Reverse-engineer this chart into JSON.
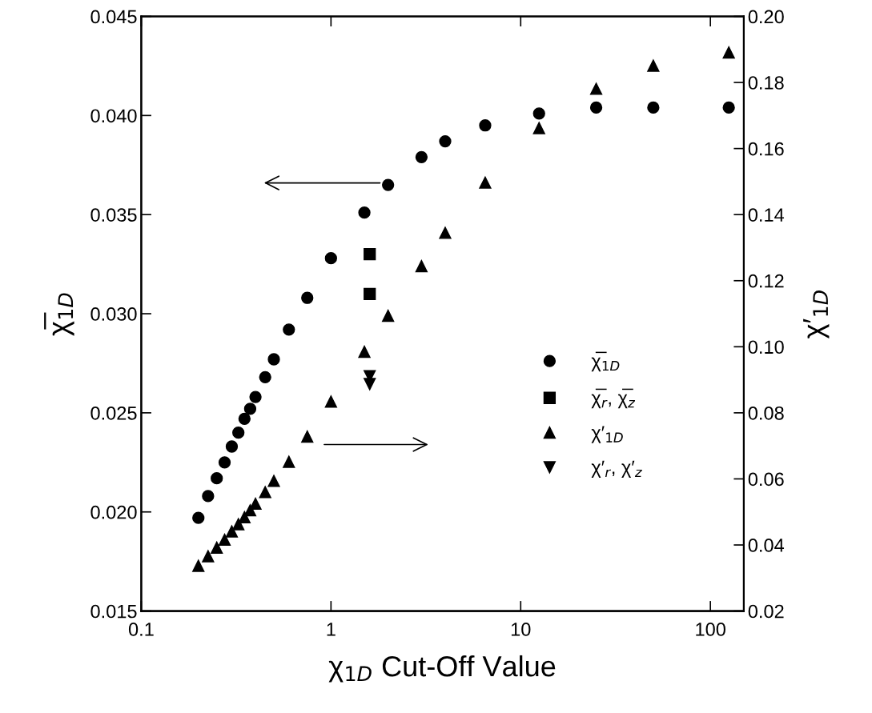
{
  "chart_data": {
    "type": "scatter",
    "xlabel": "χ$_{1D}$ Cut-Off Value",
    "ylabel": "χ̅$_{1D}$",
    "y2label": "χ′$_{1D}$",
    "log": "x",
    "xlim": [
      0.1,
      150
    ],
    "xticks": [
      0.1,
      1,
      10,
      100
    ],
    "ylim": [
      0.015,
      0.045
    ],
    "yticks": [
      0.015,
      {
        "value": 0.02,
        "label": "0.020"
      },
      0.025,
      {
        "value": 0.03,
        "label": "0.030"
      },
      0.035,
      {
        "value": 0.04,
        "label": "0.040"
      },
      0.045
    ],
    "y2lim": [
      0.02,
      0.2
    ],
    "y2ticks": [
      0.02,
      0.04,
      0.06,
      0.08,
      {
        "value": 0.1,
        "label": "0.10"
      },
      0.12,
      0.14,
      0.16,
      0.18,
      {
        "value": 0.2,
        "label": "0.20"
      }
    ],
    "grid": false,
    "legend": "right",
    "series": [
      {
        "name": "χ̅$_{1D}$",
        "color": "#000000",
        "marker": "circle",
        "x": [
          0.2,
          0.225,
          0.25,
          0.275,
          0.3,
          0.325,
          0.35,
          0.375,
          0.4,
          0.45,
          0.5,
          0.6,
          0.75,
          1,
          1.5,
          2,
          3,
          4,
          6.5,
          12.5,
          25,
          50,
          125
        ],
        "values": [
          0.0197,
          0.0208,
          0.0217,
          0.0225,
          0.0233,
          0.024,
          0.0247,
          0.0252,
          0.0258,
          0.0268,
          0.0277,
          0.0292,
          0.0308,
          0.0328,
          0.0351,
          0.0365,
          0.0379,
          0.0387,
          0.0395,
          0.0401,
          0.0404,
          0.0404,
          0.0404
        ]
      },
      {
        "name": "χ̅$_{r}$, χ̅$_{z}$",
        "color": "#000000",
        "marker": "square",
        "x": [
          1.6,
          1.6
        ],
        "values": [
          0.033,
          0.031
        ]
      },
      {
        "name": "χ′$_{1D}$",
        "color": "#000000",
        "marker": "triangle",
        "axis": "y2",
        "x": [
          0.2,
          0.225,
          0.25,
          0.275,
          0.3,
          0.325,
          0.35,
          0.375,
          0.4,
          0.45,
          0.5,
          0.6,
          0.75,
          1,
          1.5,
          2,
          3,
          4,
          6.5,
          12.5,
          25,
          50,
          125
        ],
        "values": [
          0.0337,
          0.0366,
          0.0392,
          0.0416,
          0.0441,
          0.0463,
          0.0484,
          0.0505,
          0.0525,
          0.056,
          0.0594,
          0.0652,
          0.0728,
          0.0834,
          0.0985,
          0.1094,
          0.1244,
          0.1345,
          0.1497,
          0.1662,
          0.1781,
          0.1851,
          0.1891
        ]
      },
      {
        "name": "χ′$_{r}$, χ′$_{z}$",
        "color": "#000000",
        "marker": "triangle_down",
        "axis": "y2",
        "x": [
          1.6,
          1.6
        ],
        "values": [
          0.0911,
          0.0887
        ]
      }
    ]
  }
}
